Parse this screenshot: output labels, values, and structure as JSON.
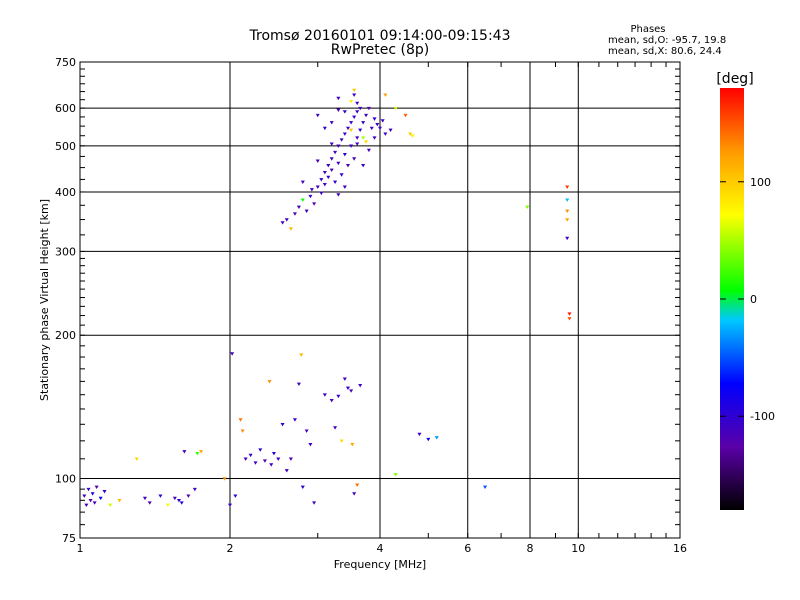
{
  "chart_data": {
    "type": "scatter",
    "title": "Tromsø 20160101 09:14:00-09:15:43",
    "subtitle": "RwPretec (8p)",
    "xlabel": "Frequency [MHz]",
    "ylabel": "Stationary phase Virtual Height [km]",
    "x_scale": "log",
    "y_scale": "log",
    "xlim": [
      1,
      16
    ],
    "ylim": [
      75,
      750
    ],
    "x_tick_labels": [
      "1",
      "2",
      "4",
      "6",
      "8",
      "10",
      "16"
    ],
    "x_ticks": [
      1,
      2,
      4,
      6,
      8,
      10,
      16
    ],
    "y_tick_labels": [
      "75",
      "100",
      "200",
      "300",
      "400",
      "500",
      "600",
      "750"
    ],
    "y_ticks": [
      75,
      100,
      200,
      300,
      400,
      500,
      600,
      750
    ],
    "grid": true,
    "stats": {
      "title": "Phases",
      "line_o": "mean, sd,O: -95.7, 19.8",
      "line_x": "mean, sd,X:  80.6, 24.4"
    },
    "colorbar": {
      "label": "[deg]",
      "range": [
        -180,
        180
      ],
      "tick_labels": [
        "100",
        "0",
        "-100"
      ],
      "ticks": [
        100,
        0,
        -100
      ]
    },
    "points": [
      {
        "x": 1.02,
        "y": 92,
        "phase": -110
      },
      {
        "x": 1.03,
        "y": 88,
        "phase": -115
      },
      {
        "x": 1.04,
        "y": 95,
        "phase": -100
      },
      {
        "x": 1.05,
        "y": 90,
        "phase": -120
      },
      {
        "x": 1.06,
        "y": 93,
        "phase": -95
      },
      {
        "x": 1.07,
        "y": 89,
        "phase": -110
      },
      {
        "x": 1.08,
        "y": 96,
        "phase": -125
      },
      {
        "x": 1.1,
        "y": 91,
        "phase": -70
      },
      {
        "x": 1.12,
        "y": 94,
        "phase": -100
      },
      {
        "x": 1.15,
        "y": 88,
        "phase": 60
      },
      {
        "x": 1.2,
        "y": 90,
        "phase": 110
      },
      {
        "x": 1.3,
        "y": 110,
        "phase": 95
      },
      {
        "x": 1.35,
        "y": 91,
        "phase": -110
      },
      {
        "x": 1.38,
        "y": 89,
        "phase": -120
      },
      {
        "x": 1.45,
        "y": 92,
        "phase": -105
      },
      {
        "x": 1.5,
        "y": 88,
        "phase": 70
      },
      {
        "x": 1.55,
        "y": 91,
        "phase": -115
      },
      {
        "x": 1.58,
        "y": 90,
        "phase": -100
      },
      {
        "x": 1.6,
        "y": 89,
        "phase": -95
      },
      {
        "x": 1.62,
        "y": 114,
        "phase": -110
      },
      {
        "x": 1.65,
        "y": 92,
        "phase": -120
      },
      {
        "x": 1.7,
        "y": 95,
        "phase": -110
      },
      {
        "x": 1.72,
        "y": 113,
        "phase": 20
      },
      {
        "x": 1.75,
        "y": 114,
        "phase": 120
      },
      {
        "x": 1.95,
        "y": 100,
        "phase": 130
      },
      {
        "x": 2.0,
        "y": 88,
        "phase": -110
      },
      {
        "x": 2.02,
        "y": 183,
        "phase": -110
      },
      {
        "x": 2.05,
        "y": 92,
        "phase": -100
      },
      {
        "x": 2.1,
        "y": 133,
        "phase": 140
      },
      {
        "x": 2.12,
        "y": 126,
        "phase": 130
      },
      {
        "x": 2.15,
        "y": 110,
        "phase": -115
      },
      {
        "x": 2.2,
        "y": 112,
        "phase": -105
      },
      {
        "x": 2.25,
        "y": 108,
        "phase": -110
      },
      {
        "x": 2.3,
        "y": 115,
        "phase": -100
      },
      {
        "x": 2.35,
        "y": 109,
        "phase": -120
      },
      {
        "x": 2.4,
        "y": 160,
        "phase": 130
      },
      {
        "x": 2.42,
        "y": 107,
        "phase": -110
      },
      {
        "x": 2.45,
        "y": 113,
        "phase": -95
      },
      {
        "x": 2.5,
        "y": 110,
        "phase": -110
      },
      {
        "x": 2.55,
        "y": 130,
        "phase": -100
      },
      {
        "x": 2.6,
        "y": 104,
        "phase": -110
      },
      {
        "x": 2.65,
        "y": 110,
        "phase": -120
      },
      {
        "x": 2.7,
        "y": 133,
        "phase": -105
      },
      {
        "x": 2.75,
        "y": 158,
        "phase": -110
      },
      {
        "x": 2.78,
        "y": 182,
        "phase": 110
      },
      {
        "x": 2.8,
        "y": 96,
        "phase": -100
      },
      {
        "x": 2.85,
        "y": 126,
        "phase": -115
      },
      {
        "x": 2.9,
        "y": 118,
        "phase": -110
      },
      {
        "x": 2.95,
        "y": 89,
        "phase": -110
      },
      {
        "x": 3.1,
        "y": 150,
        "phase": -110
      },
      {
        "x": 3.2,
        "y": 146,
        "phase": -115
      },
      {
        "x": 3.25,
        "y": 128,
        "phase": -110
      },
      {
        "x": 3.3,
        "y": 149,
        "phase": -105
      },
      {
        "x": 3.35,
        "y": 120,
        "phase": 90
      },
      {
        "x": 3.4,
        "y": 162,
        "phase": -110
      },
      {
        "x": 3.45,
        "y": 155,
        "phase": -100
      },
      {
        "x": 3.5,
        "y": 153,
        "phase": -120
      },
      {
        "x": 3.52,
        "y": 118,
        "phase": 120
      },
      {
        "x": 3.55,
        "y": 93,
        "phase": -110
      },
      {
        "x": 3.6,
        "y": 97,
        "phase": 140
      },
      {
        "x": 3.65,
        "y": 157,
        "phase": -110
      },
      {
        "x": 4.3,
        "y": 102,
        "phase": 40
      },
      {
        "x": 4.8,
        "y": 124,
        "phase": -110
      },
      {
        "x": 5.0,
        "y": 121,
        "phase": -80
      },
      {
        "x": 5.2,
        "y": 122,
        "phase": -30
      },
      {
        "x": 6.5,
        "y": 96,
        "phase": -50
      },
      {
        "x": 2.55,
        "y": 345,
        "phase": -110
      },
      {
        "x": 2.6,
        "y": 350,
        "phase": -110
      },
      {
        "x": 2.65,
        "y": 335,
        "phase": 110
      },
      {
        "x": 2.7,
        "y": 360,
        "phase": -120
      },
      {
        "x": 2.75,
        "y": 372,
        "phase": -115
      },
      {
        "x": 2.8,
        "y": 385,
        "phase": 10
      },
      {
        "x": 2.85,
        "y": 365,
        "phase": -110
      },
      {
        "x": 2.9,
        "y": 392,
        "phase": -100
      },
      {
        "x": 2.92,
        "y": 405,
        "phase": -110
      },
      {
        "x": 2.95,
        "y": 378,
        "phase": -120
      },
      {
        "x": 3.0,
        "y": 410,
        "phase": -110
      },
      {
        "x": 3.05,
        "y": 425,
        "phase": -100
      },
      {
        "x": 3.05,
        "y": 398,
        "phase": -105
      },
      {
        "x": 3.1,
        "y": 440,
        "phase": -110
      },
      {
        "x": 3.1,
        "y": 415,
        "phase": -115
      },
      {
        "x": 3.15,
        "y": 455,
        "phase": -110
      },
      {
        "x": 3.15,
        "y": 430,
        "phase": -100
      },
      {
        "x": 3.2,
        "y": 470,
        "phase": -110
      },
      {
        "x": 3.2,
        "y": 445,
        "phase": -120
      },
      {
        "x": 3.25,
        "y": 485,
        "phase": -110
      },
      {
        "x": 3.25,
        "y": 420,
        "phase": -100
      },
      {
        "x": 3.3,
        "y": 500,
        "phase": -115
      },
      {
        "x": 3.3,
        "y": 460,
        "phase": -110
      },
      {
        "x": 3.35,
        "y": 515,
        "phase": -110
      },
      {
        "x": 3.35,
        "y": 435,
        "phase": -105
      },
      {
        "x": 3.4,
        "y": 530,
        "phase": -110
      },
      {
        "x": 3.4,
        "y": 480,
        "phase": -100
      },
      {
        "x": 3.45,
        "y": 545,
        "phase": -110
      },
      {
        "x": 3.45,
        "y": 455,
        "phase": -120
      },
      {
        "x": 3.5,
        "y": 560,
        "phase": -110
      },
      {
        "x": 3.5,
        "y": 500,
        "phase": -110
      },
      {
        "x": 3.55,
        "y": 575,
        "phase": -100
      },
      {
        "x": 3.55,
        "y": 470,
        "phase": -115
      },
      {
        "x": 3.6,
        "y": 590,
        "phase": -110
      },
      {
        "x": 3.6,
        "y": 520,
        "phase": -110
      },
      {
        "x": 3.65,
        "y": 540,
        "phase": -100
      },
      {
        "x": 3.7,
        "y": 560,
        "phase": -110
      },
      {
        "x": 3.75,
        "y": 580,
        "phase": -110
      },
      {
        "x": 3.8,
        "y": 600,
        "phase": -120
      },
      {
        "x": 3.85,
        "y": 545,
        "phase": -110
      },
      {
        "x": 3.9,
        "y": 570,
        "phase": -100
      },
      {
        "x": 3.95,
        "y": 555,
        "phase": -110
      },
      {
        "x": 2.8,
        "y": 420,
        "phase": -110
      },
      {
        "x": 3.0,
        "y": 465,
        "phase": -115
      },
      {
        "x": 3.2,
        "y": 505,
        "phase": -110
      },
      {
        "x": 3.4,
        "y": 590,
        "phase": -100
      },
      {
        "x": 3.5,
        "y": 620,
        "phase": 80
      },
      {
        "x": 3.6,
        "y": 615,
        "phase": -110
      },
      {
        "x": 3.55,
        "y": 640,
        "phase": -110
      },
      {
        "x": 3.65,
        "y": 600,
        "phase": -110
      },
      {
        "x": 3.2,
        "y": 560,
        "phase": -110
      },
      {
        "x": 3.1,
        "y": 545,
        "phase": -100
      },
      {
        "x": 3.0,
        "y": 580,
        "phase": -110
      },
      {
        "x": 3.3,
        "y": 630,
        "phase": -110
      },
      {
        "x": 3.3,
        "y": 595,
        "phase": -120
      },
      {
        "x": 3.7,
        "y": 520,
        "phase": 50
      },
      {
        "x": 3.75,
        "y": 510,
        "phase": 90
      },
      {
        "x": 3.5,
        "y": 540,
        "phase": 100
      },
      {
        "x": 3.6,
        "y": 505,
        "phase": -110
      },
      {
        "x": 3.4,
        "y": 410,
        "phase": -110
      },
      {
        "x": 3.3,
        "y": 395,
        "phase": -110
      },
      {
        "x": 3.7,
        "y": 455,
        "phase": -110
      },
      {
        "x": 3.8,
        "y": 490,
        "phase": -110
      },
      {
        "x": 3.9,
        "y": 520,
        "phase": -110
      },
      {
        "x": 4.0,
        "y": 545,
        "phase": -110
      },
      {
        "x": 4.05,
        "y": 565,
        "phase": -110
      },
      {
        "x": 4.1,
        "y": 530,
        "phase": -110
      },
      {
        "x": 4.2,
        "y": 540,
        "phase": -110
      },
      {
        "x": 4.3,
        "y": 600,
        "phase": 60
      },
      {
        "x": 4.5,
        "y": 580,
        "phase": 150
      },
      {
        "x": 4.6,
        "y": 530,
        "phase": 100
      },
      {
        "x": 4.65,
        "y": 525,
        "phase": 80
      },
      {
        "x": 4.1,
        "y": 640,
        "phase": 120
      },
      {
        "x": 3.55,
        "y": 655,
        "phase": 100
      },
      {
        "x": 7.9,
        "y": 372,
        "phase": 40
      },
      {
        "x": 9.5,
        "y": 410,
        "phase": 160
      },
      {
        "x": 9.5,
        "y": 385,
        "phase": -20
      },
      {
        "x": 9.5,
        "y": 365,
        "phase": 130
      },
      {
        "x": 9.5,
        "y": 350,
        "phase": 120
      },
      {
        "x": 9.5,
        "y": 320,
        "phase": -110
      },
      {
        "x": 9.6,
        "y": 222,
        "phase": 170
      },
      {
        "x": 9.6,
        "y": 217,
        "phase": 150
      }
    ]
  }
}
